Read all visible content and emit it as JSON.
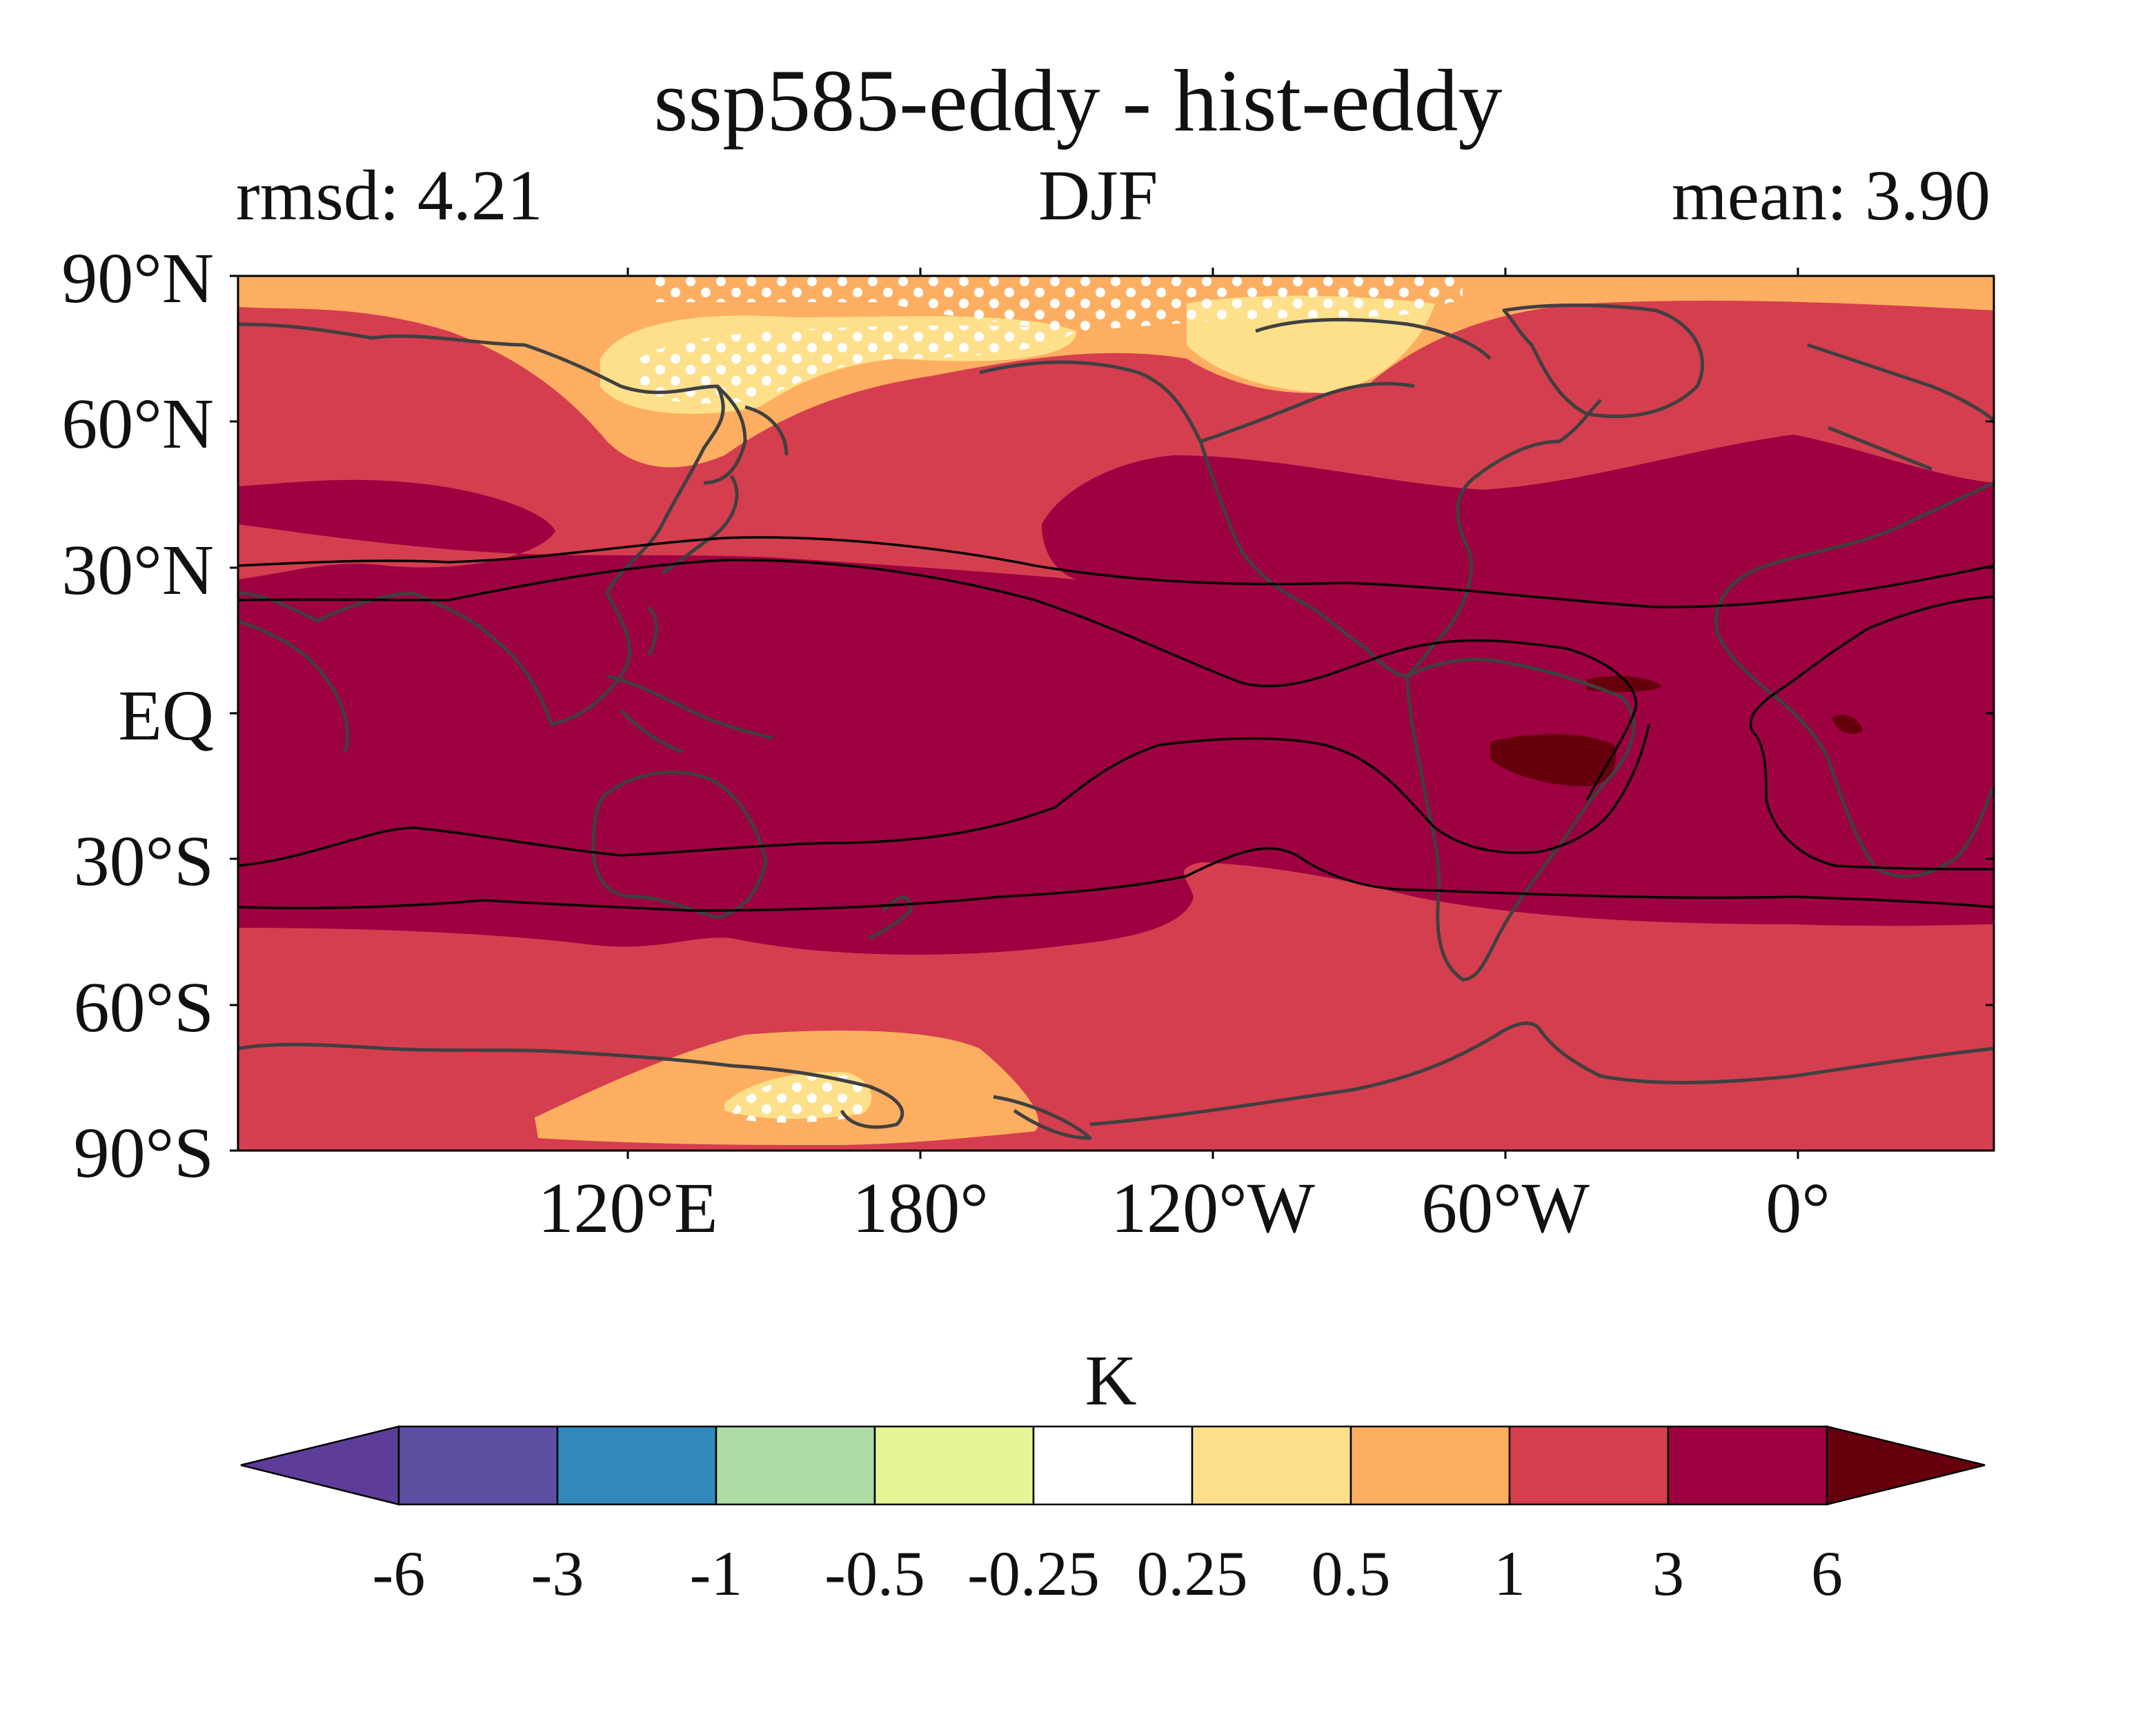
{
  "header": {
    "title": "ssp585-eddy - hist-eddy",
    "left_stat": "rmsd: 4.21",
    "season": "DJF",
    "right_stat": "mean: 3.90"
  },
  "map": {
    "projection": "PlateCarree, central longitude 180°W-wrapped (60°E to 420°E)",
    "lat_ticks": [
      "90°N",
      "60°N",
      "30°N",
      "EQ",
      "30°S",
      "60°S",
      "90°S"
    ],
    "lon_ticks": [
      "120°E",
      "180°",
      "120°W",
      "60°W",
      "0°"
    ],
    "overlay": "black contour lines; white stippling marks significance",
    "coastline_color": "#404040"
  },
  "colorbar": {
    "unit": "K",
    "extend": "both",
    "tick_labels": [
      "-6",
      "-3",
      "-1",
      "-0.5",
      "-0.25",
      "0.25",
      "0.5",
      "1",
      "3",
      "6"
    ],
    "colors": [
      "#5e3c99",
      "#5f4fa2",
      "#3288bd",
      "#abdda4",
      "#e6f598",
      "#ffffff",
      "#fee08b",
      "#fdae61",
      "#d53e4f",
      "#9e0142",
      "#67000d"
    ]
  },
  "chart_data": {
    "type": "heatmap",
    "title": "ssp585-eddy - hist-eddy",
    "subtitle_left": "rmsd: 4.21",
    "subtitle_center": "DJF",
    "subtitle_right": "mean: 3.90",
    "xlabel": "",
    "ylabel": "",
    "color_levels": [
      -6,
      -3,
      -1,
      -0.5,
      -0.25,
      0.25,
      0.5,
      1,
      3,
      6
    ],
    "unit": "K",
    "regions": [
      {
        "area": "tropics 30°S–30°N",
        "range": "3 to 6"
      },
      {
        "area": "mid-latitude belts 30°–60°",
        "range": "1 to 3 / 3 to 6"
      },
      {
        "area": "Arctic north of NE Asia / Bering",
        "range": "0.25 to 1"
      },
      {
        "area": "Antarctic Ross Sea sector",
        "range": "0.25 to 1"
      },
      {
        "area": "central South America",
        "range": "> 6"
      }
    ]
  }
}
